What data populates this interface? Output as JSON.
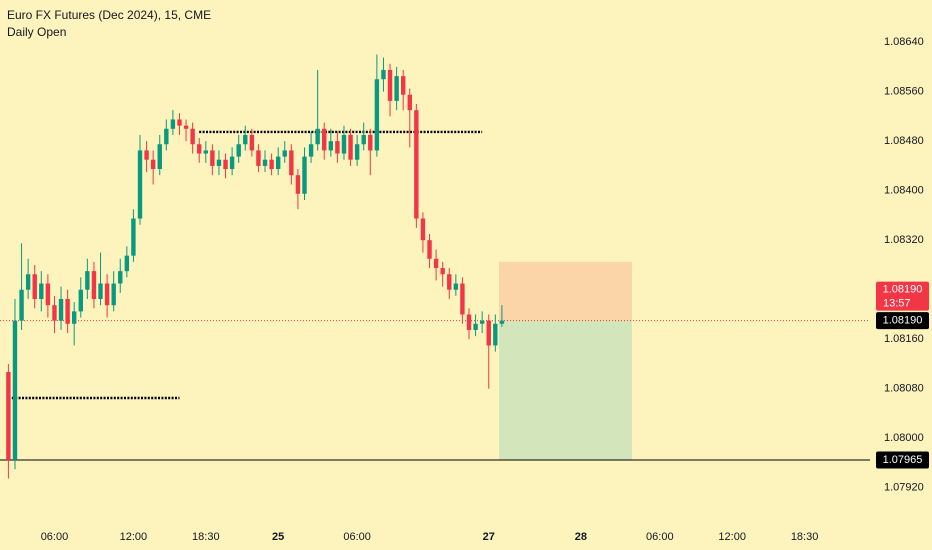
{
  "chart_data": {
    "type": "candlestick",
    "title": "Euro FX Futures (Dec 2024), 15, CME",
    "background": "#fdf3bd",
    "up_color": "#089981",
    "down_color": "#f23645",
    "categories": [
      null,
      null,
      null,
      null,
      null,
      null,
      null,
      "06:00",
      null,
      null,
      null,
      null,
      null,
      null,
      null,
      null,
      null,
      null,
      null,
      "12:00",
      null,
      null,
      null,
      null,
      null,
      null,
      null,
      null,
      null,
      null,
      "18:30",
      null,
      null,
      null,
      null,
      null,
      null,
      null,
      null,
      null,
      null,
      "25",
      null,
      null,
      null,
      null,
      null,
      null,
      null,
      null,
      null,
      null,
      null,
      "06:00",
      null,
      null,
      null,
      null,
      null,
      null,
      null,
      null,
      null,
      null,
      null,
      null,
      null,
      null,
      null,
      null,
      null,
      null,
      null,
      "27",
      null,
      null,
      null,
      null,
      null,
      null,
      null,
      null,
      null,
      null,
      null,
      null,
      null,
      "28",
      null,
      null,
      null,
      null,
      null,
      null,
      null,
      null,
      null,
      null,
      null,
      "06:00",
      null,
      null,
      null,
      null,
      null,
      null,
      null,
      null,
      null,
      null,
      "12:00",
      null,
      null,
      null,
      null,
      null,
      null,
      null,
      null,
      null,
      null,
      "18:30",
      null,
      null,
      null,
      null,
      null,
      null,
      null,
      null,
      null
    ],
    "open": [
      1.08107,
      1.07965,
      1.0819,
      1.0824,
      1.08265,
      1.08225,
      1.0825,
      1.08215,
      1.0819,
      1.08225,
      1.08185,
      1.08205,
      1.0824,
      1.0827,
      1.08225,
      1.0825,
      1.08215,
      1.0825,
      1.0827,
      1.08295,
      1.08355,
      1.08465,
      1.0845,
      1.08435,
      1.08475,
      1.085,
      1.08515,
      1.08505,
      1.085,
      1.08475,
      1.0846,
      1.08465,
      1.0844,
      1.0845,
      1.08435,
      1.08455,
      1.08475,
      1.0849,
      1.08465,
      1.0844,
      1.0845,
      1.08435,
      1.08455,
      1.08465,
      1.08425,
      1.08395,
      1.08455,
      1.08475,
      1.085,
      1.08465,
      1.0848,
      1.0846,
      1.0849,
      1.0845,
      1.08475,
      1.0849,
      1.08465,
      1.0858,
      1.08595,
      1.08545,
      1.08585,
      1.08555,
      1.0853,
      1.08355,
      1.0832,
      1.0829,
      1.08275,
      1.08265,
      1.0824,
      1.0825,
      1.082,
      1.08175,
      1.08185,
      1.0819,
      1.0815,
      1.08185,
      null,
      null,
      null,
      null,
      null,
      null,
      null,
      null,
      null,
      null,
      null,
      null,
      null,
      null,
      null,
      null,
      null,
      null,
      null,
      null,
      null,
      null,
      null,
      null,
      null,
      null,
      null,
      null,
      null,
      null,
      null,
      null,
      null,
      null,
      null,
      null,
      null,
      null,
      null,
      null,
      null,
      null,
      null,
      null,
      null,
      null,
      null,
      null,
      null,
      null,
      null,
      null,
      null,
      null,
      null
    ],
    "high": [
      1.0812,
      1.08225,
      1.08315,
      1.0829,
      1.0828,
      1.0827,
      1.08265,
      1.0823,
      1.08245,
      1.0824,
      1.0822,
      1.0826,
      1.0829,
      1.08285,
      1.083,
      1.08265,
      1.0827,
      1.0829,
      1.0831,
      1.0837,
      1.0849,
      1.0848,
      1.08465,
      1.0849,
      1.08515,
      1.0853,
      1.08525,
      1.08515,
      1.0851,
      1.08485,
      1.0848,
      1.08475,
      1.08465,
      1.0846,
      1.0847,
      1.0849,
      1.08505,
      1.085,
      1.08475,
      1.08465,
      1.0846,
      1.0847,
      1.0848,
      1.08475,
      1.08435,
      1.0847,
      1.08495,
      1.08595,
      1.0851,
      1.085,
      1.08495,
      1.08505,
      1.085,
      1.0849,
      1.0851,
      1.085,
      1.0862,
      1.08615,
      1.08605,
      1.086,
      1.08595,
      1.08565,
      1.0854,
      1.08365,
      1.0833,
      1.08305,
      1.08285,
      1.08275,
      1.08265,
      1.0826,
      1.0821,
      1.082,
      1.08205,
      1.082,
      1.082,
      1.08215,
      null,
      null,
      null,
      null,
      null,
      null,
      null,
      null,
      null,
      null,
      null,
      null,
      null,
      null,
      null,
      null,
      null,
      null,
      null,
      null,
      null,
      null,
      null,
      null,
      null,
      null,
      null,
      null,
      null,
      null,
      null,
      null,
      null,
      null,
      null,
      null,
      null,
      null,
      null,
      null,
      null,
      null,
      null,
      null,
      null,
      null,
      null,
      null,
      null,
      null,
      null,
      null,
      null,
      null,
      null
    ],
    "low": [
      1.07935,
      1.0795,
      1.08175,
      1.08225,
      1.0821,
      1.08205,
      1.08195,
      1.0817,
      1.08175,
      1.0817,
      1.0815,
      1.08195,
      1.08225,
      1.0821,
      1.08215,
      1.08195,
      1.08205,
      1.08235,
      1.0826,
      1.08285,
      1.08345,
      1.0843,
      1.0841,
      1.08425,
      1.08465,
      1.0849,
      1.0849,
      1.0848,
      1.0846,
      1.08445,
      1.08445,
      1.08425,
      1.08425,
      1.0842,
      1.08425,
      1.08445,
      1.08465,
      1.08455,
      1.0843,
      1.0843,
      1.08425,
      1.08425,
      1.08445,
      1.0841,
      1.0837,
      1.08385,
      1.08445,
      1.08465,
      1.0845,
      1.08455,
      1.08445,
      1.0845,
      1.0844,
      1.0844,
      1.08465,
      1.08425,
      1.08455,
      1.0856,
      1.0852,
      1.0853,
      1.0853,
      1.0847,
      1.0834,
      1.083,
      1.08275,
      1.08255,
      1.08245,
      1.08225,
      1.0823,
      1.08185,
      1.0816,
      1.08165,
      1.0817,
      1.0808,
      1.0814,
      1.0818,
      null,
      null,
      null,
      null,
      null,
      null,
      null,
      null,
      null,
      null,
      null,
      null,
      null,
      null,
      null,
      null,
      null,
      null,
      null,
      null,
      null,
      null,
      null,
      null,
      null,
      null,
      null,
      null,
      null,
      null,
      null,
      null,
      null,
      null,
      null,
      null,
      null,
      null,
      null,
      null,
      null,
      null,
      null,
      null,
      null,
      null,
      null,
      null,
      null,
      null,
      null,
      null,
      null,
      null,
      null
    ],
    "close": [
      1.07965,
      1.0819,
      1.0824,
      1.08265,
      1.08225,
      1.0825,
      1.08215,
      1.0819,
      1.08225,
      1.08185,
      1.08205,
      1.0824,
      1.0827,
      1.08225,
      1.0825,
      1.08215,
      1.0825,
      1.0827,
      1.08295,
      1.08355,
      1.08465,
      1.0845,
      1.08435,
      1.08475,
      1.085,
      1.08515,
      1.08505,
      1.085,
      1.08475,
      1.0846,
      1.08465,
      1.0844,
      1.0845,
      1.08435,
      1.08455,
      1.08475,
      1.0849,
      1.08465,
      1.0844,
      1.0845,
      1.08435,
      1.08455,
      1.08465,
      1.08425,
      1.08395,
      1.08455,
      1.08475,
      1.085,
      1.08465,
      1.0848,
      1.0846,
      1.0849,
      1.0845,
      1.08475,
      1.0849,
      1.08465,
      1.0858,
      1.08595,
      1.08545,
      1.08585,
      1.08555,
      1.0853,
      1.08355,
      1.0832,
      1.0829,
      1.08275,
      1.08265,
      1.0824,
      1.0825,
      1.082,
      1.08175,
      1.08185,
      1.0819,
      1.0815,
      1.08185,
      1.0819,
      null,
      null,
      null,
      null,
      null,
      null,
      null,
      null,
      null,
      null,
      null,
      null,
      null,
      null,
      null,
      null,
      null,
      null,
      null,
      null,
      null,
      null,
      null,
      null,
      null,
      null,
      null,
      null,
      null,
      null,
      null,
      null,
      null,
      null,
      null,
      null,
      null,
      null,
      null,
      null,
      null,
      null,
      null,
      null,
      null,
      null,
      null,
      null,
      null,
      null,
      null,
      null,
      null,
      null,
      null
    ],
    "indicator": {
      "name": "Daily Open",
      "color": "#000000",
      "values": [
        1.08065,
        1.08065,
        1.08065,
        1.08065,
        1.08065,
        1.08065,
        1.08065,
        1.08065,
        1.08065,
        1.08065,
        1.08065,
        1.08065,
        1.08065,
        1.08065,
        1.08065,
        1.08065,
        1.08065,
        1.08065,
        1.08065,
        1.08065,
        1.08065,
        1.08065,
        1.08065,
        1.08065,
        1.08065,
        1.08065,
        1.08065,
        null,
        null,
        1.08495,
        1.08495,
        1.08495,
        1.08495,
        1.08495,
        1.08495,
        1.08495,
        1.08495,
        1.08495,
        1.08495,
        1.08495,
        1.08495,
        1.08495,
        1.08495,
        1.08495,
        1.08495,
        1.08495,
        1.08495,
        1.08495,
        1.08495,
        1.08495,
        1.08495,
        1.08495,
        1.08495,
        1.08495,
        1.08495,
        1.08495,
        1.08495,
        1.08495,
        1.08495,
        1.08495,
        1.08495,
        1.08495,
        1.08495,
        1.08495,
        1.08495,
        1.08495,
        1.08495,
        1.08495,
        1.08495,
        1.08495,
        1.08495,
        1.08495,
        1.08495,
        null,
        null,
        null,
        null,
        null,
        null,
        null,
        null,
        null,
        null,
        null,
        null,
        null,
        null,
        null,
        null,
        null,
        null,
        null,
        null,
        null,
        null,
        null,
        null,
        null,
        null,
        null,
        null,
        null,
        null,
        null,
        null,
        null,
        null,
        null,
        null,
        null,
        null,
        null,
        null,
        null,
        null,
        null,
        null,
        null,
        null,
        null,
        null,
        null,
        null,
        null,
        null,
        null,
        null,
        null,
        null,
        null,
        null
      ]
    },
    "ylim": [
      1.07868,
      1.08708
    ],
    "yticks": [
      {
        "value": 1.0864,
        "label": "1.08640"
      },
      {
        "value": 1.0856,
        "label": "1.08560"
      },
      {
        "value": 1.0848,
        "label": "1.08480"
      },
      {
        "value": 1.084,
        "label": "1.08400"
      },
      {
        "value": 1.0832,
        "label": "1.08320"
      },
      {
        "value": 1.0816,
        "label": "1.08160"
      },
      {
        "value": 1.0808,
        "label": "1.08080"
      },
      {
        "value": 1.08,
        "label": "1.08000"
      },
      {
        "value": 1.0792,
        "label": "1.07920"
      }
    ],
    "horizontal_line": {
      "value": 1.07965,
      "color": "#000000"
    },
    "last_price": {
      "value": 1.0819,
      "label": "1.08190",
      "color": "#f23645"
    },
    "countdown": "13:57",
    "position": {
      "entry": {
        "value": 1.0819,
        "label": "1.08190"
      },
      "stop": 1.08285,
      "target": 1.07965,
      "stop_color": "#fbd4a8",
      "target_color": "#d3e6bb"
    }
  }
}
